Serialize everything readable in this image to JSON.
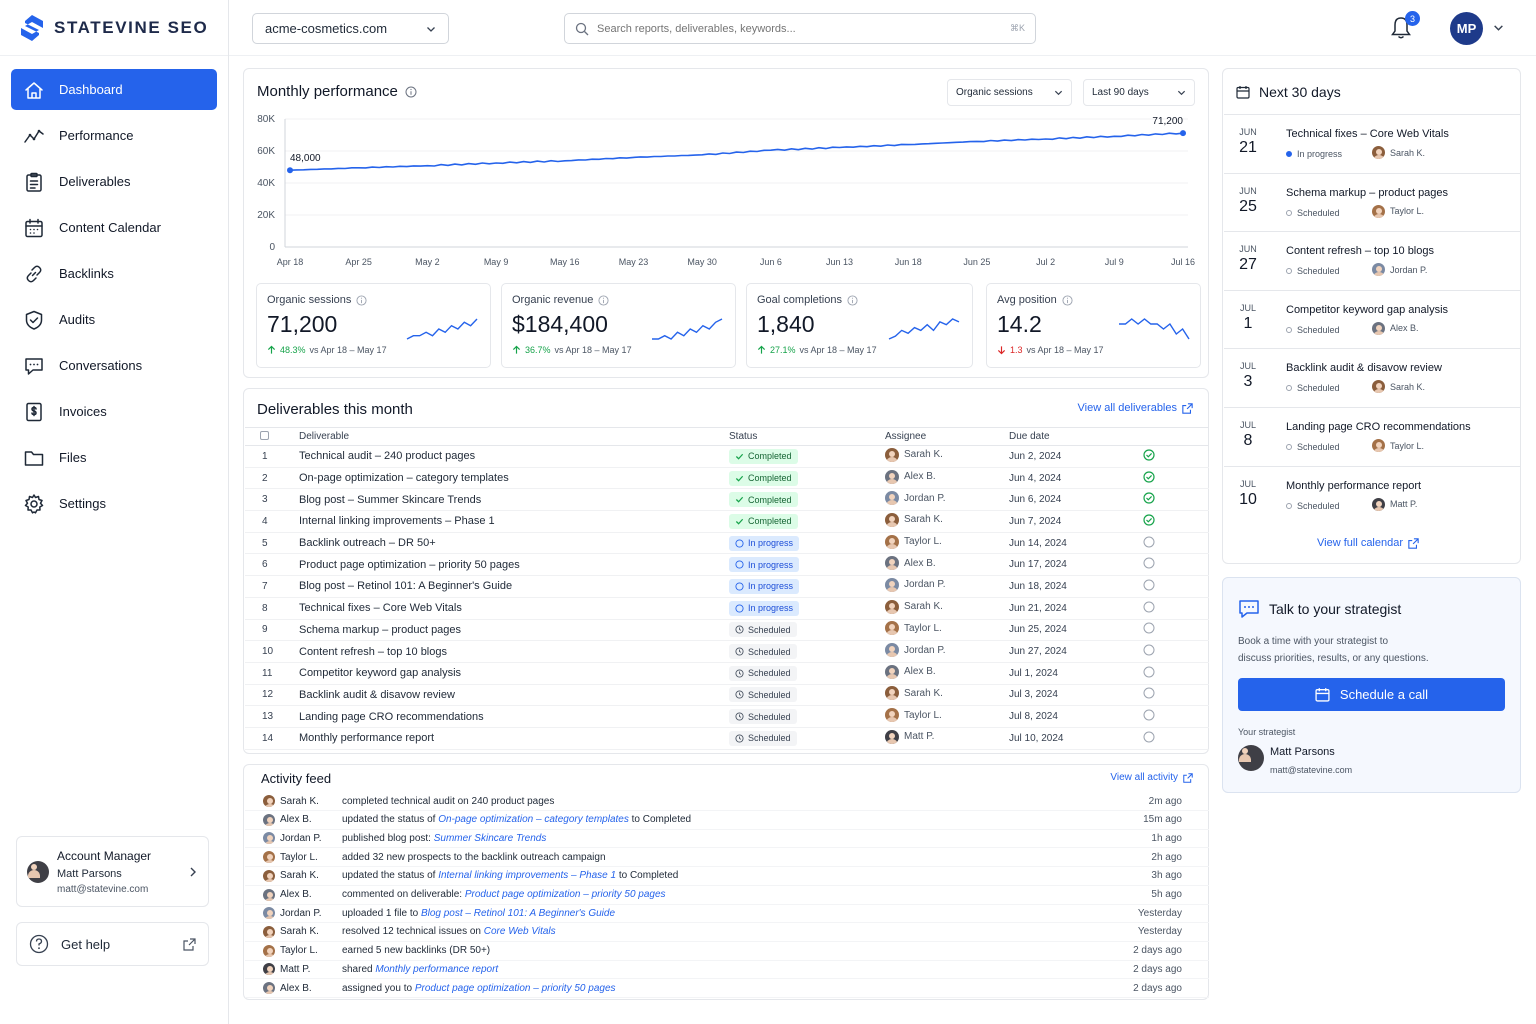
{
  "brand": {
    "name": "STATEVINE SEO"
  },
  "nav": [
    {
      "label": "Dashboard",
      "icon": "home-icon",
      "active": true
    },
    {
      "label": "Performance",
      "icon": "trend-icon"
    },
    {
      "label": "Deliverables",
      "icon": "clipboard-icon"
    },
    {
      "label": "Content Calendar",
      "icon": "calendar-icon"
    },
    {
      "label": "Backlinks",
      "icon": "link-icon"
    },
    {
      "label": "Audits",
      "icon": "shield-icon"
    },
    {
      "label": "Conversations",
      "icon": "chat-icon"
    },
    {
      "label": "Invoices",
      "icon": "dollar-doc-icon"
    },
    {
      "label": "Files",
      "icon": "folder-icon"
    },
    {
      "label": "Settings",
      "icon": "gear-icon"
    }
  ],
  "account": {
    "title": "Account Manager",
    "name": "Matt Parsons",
    "email": "matt@statevine.com"
  },
  "help": {
    "label": "Get help"
  },
  "topbar": {
    "domain": "acme-cosmetics.com",
    "search_placeholder": "Search reports, deliverables, keywords...",
    "shortcut": "⌘K",
    "notifications": "3",
    "user_initials": "MP"
  },
  "performance": {
    "title": "Monthly performance",
    "metric_select": "Organic sessions",
    "range_select": "Last 90 days",
    "chart_data": {
      "type": "line",
      "x": [
        "Apr 18",
        "Apr 25",
        "May 2",
        "May 9",
        "May 16",
        "May 23",
        "May 30",
        "Jun 6",
        "Jun 13",
        "Jun 18",
        "Jun 25",
        "Jul 2",
        "Jul 9",
        "Jul 16"
      ],
      "values": [
        48000,
        49500,
        50800,
        52500,
        53900,
        56000,
        57600,
        60500,
        62200,
        64000,
        66000,
        67500,
        69200,
        71200
      ],
      "yticks": [
        "0",
        "20K",
        "40K",
        "60K",
        "80K"
      ],
      "ylim": [
        0,
        80000
      ],
      "start_label": "48,000",
      "end_label": "71,200",
      "color": "#2563eb"
    },
    "kpis": [
      {
        "label": "Organic sessions",
        "value": "71,200",
        "change": "48.3%",
        "dir": "up",
        "period": "vs Apr 18 – May 17",
        "spark": [
          3,
          4,
          4,
          5,
          4,
          6,
          5,
          7,
          6,
          8,
          7,
          9
        ]
      },
      {
        "label": "Organic revenue",
        "value": "$184,400",
        "change": "36.7%",
        "dir": "up",
        "period": "vs Apr 18 – May 17",
        "spark": [
          3,
          3,
          4,
          3,
          5,
          4,
          6,
          5,
          7,
          6,
          8,
          9
        ]
      },
      {
        "label": "Goal completions",
        "value": "1,840",
        "change": "27.1%",
        "dir": "up",
        "period": "vs Apr 18 – May 17",
        "spark": [
          2,
          3,
          5,
          4,
          6,
          5,
          7,
          5,
          8,
          7,
          9,
          8
        ]
      },
      {
        "label": "Avg position",
        "value": "14.2",
        "change": "1.3",
        "dir": "down",
        "period": "vs Apr 18 – May 17",
        "spark": [
          6,
          6,
          7,
          6,
          7,
          6,
          6,
          5,
          6,
          4,
          5,
          3
        ]
      }
    ]
  },
  "deliverables": {
    "title": "Deliverables this month",
    "view_all": "View all deliverables",
    "columns": {
      "deliverable": "Deliverable",
      "status": "Status",
      "assignee": "Assignee",
      "due": "Due date"
    },
    "rows": [
      {
        "n": "1",
        "name": "Technical audit – 240 product pages",
        "status": "Completed",
        "assignee": "Sarah K.",
        "due": "Jun 2, 2024"
      },
      {
        "n": "2",
        "name": "On-page optimization – category templates",
        "status": "Completed",
        "assignee": "Alex B.",
        "due": "Jun 4, 2024"
      },
      {
        "n": "3",
        "name": "Blog post – Summer Skincare Trends",
        "status": "Completed",
        "assignee": "Jordan P.",
        "due": "Jun 6, 2024"
      },
      {
        "n": "4",
        "name": "Internal linking improvements – Phase 1",
        "status": "Completed",
        "assignee": "Sarah K.",
        "due": "Jun 7, 2024"
      },
      {
        "n": "5",
        "name": "Backlink outreach – DR 50+",
        "status": "In progress",
        "assignee": "Taylor L.",
        "due": "Jun 14, 2024"
      },
      {
        "n": "6",
        "name": "Product page optimization – priority 50 pages",
        "status": "In progress",
        "assignee": "Alex B.",
        "due": "Jun 17, 2024"
      },
      {
        "n": "7",
        "name": "Blog post – Retinol 101: A Beginner's Guide",
        "status": "In progress",
        "assignee": "Jordan P.",
        "due": "Jun 18, 2024"
      },
      {
        "n": "8",
        "name": "Technical fixes – Core Web Vitals",
        "status": "In progress",
        "assignee": "Sarah K.",
        "due": "Jun 21, 2024"
      },
      {
        "n": "9",
        "name": "Schema markup – product pages",
        "status": "Scheduled",
        "assignee": "Taylor L.",
        "due": "Jun 25, 2024"
      },
      {
        "n": "10",
        "name": "Content refresh – top 10 blogs",
        "status": "Scheduled",
        "assignee": "Jordan P.",
        "due": "Jun 27, 2024"
      },
      {
        "n": "11",
        "name": "Competitor keyword gap analysis",
        "status": "Scheduled",
        "assignee": "Alex B.",
        "due": "Jul 1, 2024"
      },
      {
        "n": "12",
        "name": "Backlink audit & disavow review",
        "status": "Scheduled",
        "assignee": "Sarah K.",
        "due": "Jul 3, 2024"
      },
      {
        "n": "13",
        "name": "Landing page CRO recommendations",
        "status": "Scheduled",
        "assignee": "Taylor L.",
        "due": "Jul 8, 2024"
      },
      {
        "n": "14",
        "name": "Monthly performance report",
        "status": "Scheduled",
        "assignee": "Matt P.",
        "due": "Jul 10, 2024"
      }
    ]
  },
  "activity": {
    "title": "Activity feed",
    "view_all": "View all activity",
    "rows": [
      {
        "who": "Sarah K.",
        "pre": "completed technical audit on 240 product pages",
        "link": "",
        "post": "",
        "time": "2m ago"
      },
      {
        "who": "Alex B.",
        "pre": "updated the status of ",
        "link": "On-page optimization – category templates",
        "post": " to Completed",
        "time": "15m ago"
      },
      {
        "who": "Jordan P.",
        "pre": "published blog post: ",
        "link": "Summer Skincare Trends",
        "post": "",
        "time": "1h ago"
      },
      {
        "who": "Taylor L.",
        "pre": "added 32 new prospects to the backlink outreach campaign",
        "link": "",
        "post": "",
        "time": "2h ago"
      },
      {
        "who": "Sarah K.",
        "pre": "updated the status of ",
        "link": "Internal linking improvements – Phase 1",
        "post": " to Completed",
        "time": "3h ago"
      },
      {
        "who": "Alex B.",
        "pre": "commented on deliverable: ",
        "link": "Product page optimization – priority 50 pages",
        "post": "",
        "time": "5h ago"
      },
      {
        "who": "Jordan P.",
        "pre": "uploaded 1 file to ",
        "link": "Blog post – Retinol 101: A Beginner's Guide",
        "post": "",
        "time": "Yesterday"
      },
      {
        "who": "Sarah K.",
        "pre": "resolved 12 technical issues on ",
        "link": "Core Web Vitals",
        "post": "",
        "time": "Yesterday"
      },
      {
        "who": "Taylor L.",
        "pre": "earned 5 new backlinks (DR 50+)",
        "link": "",
        "post": "",
        "time": "2 days ago"
      },
      {
        "who": "Matt P.",
        "pre": "shared ",
        "link": "Monthly performance report",
        "post": "",
        "time": "2 days ago"
      },
      {
        "who": "Alex B.",
        "pre": "assigned you to ",
        "link": "Product page optimization – priority 50 pages",
        "post": "",
        "time": "2 days ago"
      }
    ]
  },
  "calendar": {
    "title": "Next 30 days",
    "view_full": "View full calendar",
    "events": [
      {
        "mon": "JUN",
        "day": "21",
        "title": "Technical fixes – Core Web Vitals",
        "status": "In progress",
        "who": "Sarah K."
      },
      {
        "mon": "JUN",
        "day": "25",
        "title": "Schema markup – product pages",
        "status": "Scheduled",
        "who": "Taylor L."
      },
      {
        "mon": "JUN",
        "day": "27",
        "title": "Content refresh – top 10 blogs",
        "status": "Scheduled",
        "who": "Jordan P."
      },
      {
        "mon": "JUL",
        "day": "1",
        "title": "Competitor keyword gap analysis",
        "status": "Scheduled",
        "who": "Alex B."
      },
      {
        "mon": "JUL",
        "day": "3",
        "title": "Backlink audit & disavow review",
        "status": "Scheduled",
        "who": "Sarah K."
      },
      {
        "mon": "JUL",
        "day": "8",
        "title": "Landing page CRO recommendations",
        "status": "Scheduled",
        "who": "Taylor L."
      },
      {
        "mon": "JUL",
        "day": "10",
        "title": "Monthly performance report",
        "status": "Scheduled",
        "who": "Matt P."
      }
    ]
  },
  "strategist": {
    "title": "Talk to your strategist",
    "desc1": "Book a time with your strategist to",
    "desc2": "discuss priorities, results, or any questions.",
    "cta": "Schedule a call",
    "label": "Your strategist",
    "name": "Matt Parsons",
    "email": "matt@statevine.com"
  },
  "colors": {
    "accent": "#2563eb",
    "completed": "#16a34a",
    "down": "#dc2626"
  }
}
